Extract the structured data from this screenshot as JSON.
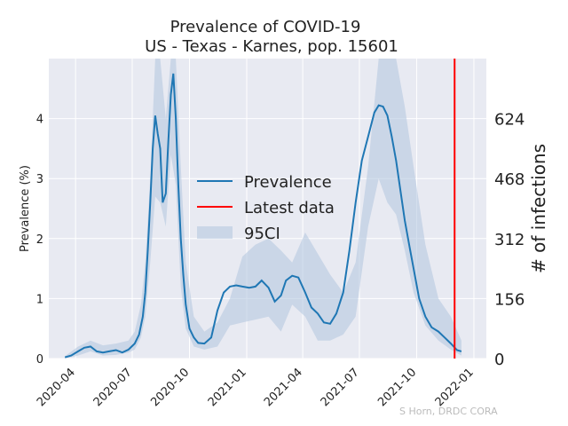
{
  "chart_data": {
    "type": "line",
    "title": "Prevalence of COVID-19",
    "subtitle": "US - Texas - Karnes, pop. 15601",
    "ylabel": "Prevalence (%)",
    "ylabel_right": "# of infections",
    "ylim": [
      0,
      5.0
    ],
    "yticks": [
      "0",
      "1",
      "2",
      "3",
      "4"
    ],
    "yticks_right": [
      "0",
      "156",
      "312",
      "468",
      "624"
    ],
    "xticks": [
      "2020-04",
      "2020-07",
      "2020-10",
      "2021-01",
      "2021-04",
      "2021-07",
      "2021-10",
      "2022-01"
    ],
    "grid": true,
    "legend_position": "center",
    "credit": "S Horn, DRDC CORA",
    "colors": {
      "line": "#1f77b4",
      "band": "#b0c4de",
      "latest": "#ff0000",
      "background": "#e8eaf2"
    },
    "series": [
      {
        "name": "Prevalence",
        "x": [
          "2020-03-15",
          "2020-03-25",
          "2020-04-05",
          "2020-04-15",
          "2020-04-25",
          "2020-05-05",
          "2020-05-15",
          "2020-05-25",
          "2020-06-05",
          "2020-06-15",
          "2020-06-25",
          "2020-07-05",
          "2020-07-12",
          "2020-07-18",
          "2020-07-22",
          "2020-07-26",
          "2020-07-30",
          "2020-08-03",
          "2020-08-07",
          "2020-08-11",
          "2020-08-15",
          "2020-08-19",
          "2020-08-24",
          "2020-08-28",
          "2020-09-01",
          "2020-09-05",
          "2020-09-09",
          "2020-09-13",
          "2020-09-17",
          "2020-09-21",
          "2020-09-25",
          "2020-10-01",
          "2020-10-08",
          "2020-10-15",
          "2020-10-25",
          "2020-11-05",
          "2020-11-15",
          "2020-11-25",
          "2020-12-05",
          "2020-12-15",
          "2020-12-25",
          "2021-01-05",
          "2021-01-15",
          "2021-01-25",
          "2021-02-05",
          "2021-02-15",
          "2021-02-25",
          "2021-03-05",
          "2021-03-15",
          "2021-03-25",
          "2021-04-05",
          "2021-04-15",
          "2021-04-25",
          "2021-05-05",
          "2021-05-15",
          "2021-05-25",
          "2021-06-05",
          "2021-06-15",
          "2021-06-25",
          "2021-07-05",
          "2021-07-15",
          "2021-07-25",
          "2021-08-01",
          "2021-08-08",
          "2021-08-15",
          "2021-08-22",
          "2021-08-29",
          "2021-09-05",
          "2021-09-12",
          "2021-09-19",
          "2021-09-26",
          "2021-10-05",
          "2021-10-15",
          "2021-10-25",
          "2021-11-05",
          "2021-11-15",
          "2021-11-25",
          "2021-12-05",
          "2021-12-12"
        ],
        "y": [
          0.02,
          0.05,
          0.12,
          0.18,
          0.2,
          0.12,
          0.1,
          0.12,
          0.14,
          0.1,
          0.15,
          0.25,
          0.4,
          0.7,
          1.1,
          1.8,
          2.6,
          3.5,
          4.05,
          3.75,
          3.5,
          2.6,
          2.75,
          3.6,
          4.4,
          4.75,
          4.0,
          2.9,
          2.0,
          1.4,
          0.9,
          0.5,
          0.35,
          0.26,
          0.25,
          0.35,
          0.8,
          1.1,
          1.2,
          1.22,
          1.2,
          1.18,
          1.2,
          1.3,
          1.18,
          0.95,
          1.05,
          1.3,
          1.38,
          1.35,
          1.1,
          0.85,
          0.75,
          0.6,
          0.58,
          0.75,
          1.1,
          1.8,
          2.6,
          3.3,
          3.7,
          4.1,
          4.22,
          4.2,
          4.05,
          3.7,
          3.3,
          2.8,
          2.3,
          1.9,
          1.5,
          1.0,
          0.7,
          0.52,
          0.45,
          0.35,
          0.25,
          0.14,
          0.12
        ]
      },
      {
        "name": "95CI",
        "x": [
          "2020-03-15",
          "2020-04-05",
          "2020-04-25",
          "2020-05-15",
          "2020-06-05",
          "2020-06-25",
          "2020-07-05",
          "2020-07-15",
          "2020-07-22",
          "2020-07-30",
          "2020-08-07",
          "2020-08-15",
          "2020-08-24",
          "2020-09-01",
          "2020-09-09",
          "2020-09-17",
          "2020-09-25",
          "2020-10-08",
          "2020-10-25",
          "2020-11-15",
          "2020-12-05",
          "2020-12-25",
          "2021-01-15",
          "2021-02-05",
          "2021-02-25",
          "2021-03-15",
          "2021-04-05",
          "2021-04-25",
          "2021-05-15",
          "2021-06-05",
          "2021-06-25",
          "2021-07-15",
          "2021-08-01",
          "2021-08-15",
          "2021-08-29",
          "2021-09-12",
          "2021-09-26",
          "2021-10-15",
          "2021-11-05",
          "2021-11-25",
          "2021-12-12"
        ],
        "upper": [
          0.04,
          0.2,
          0.3,
          0.22,
          0.25,
          0.3,
          0.45,
          0.9,
          1.6,
          3.0,
          5.0,
          5.0,
          4.0,
          5.0,
          5.0,
          3.2,
          1.6,
          0.7,
          0.45,
          0.6,
          1.0,
          1.7,
          1.9,
          2.0,
          1.8,
          1.6,
          2.1,
          1.75,
          1.4,
          1.1,
          1.6,
          3.2,
          5.0,
          5.0,
          5.0,
          4.2,
          3.2,
          1.9,
          1.0,
          0.7,
          0.3
        ],
        "lower": [
          0.0,
          0.05,
          0.12,
          0.05,
          0.06,
          0.1,
          0.15,
          0.35,
          0.7,
          1.6,
          2.7,
          2.6,
          2.2,
          3.4,
          2.9,
          1.2,
          0.5,
          0.2,
          0.15,
          0.2,
          0.55,
          0.6,
          0.65,
          0.7,
          0.45,
          0.9,
          0.7,
          0.3,
          0.3,
          0.4,
          0.7,
          2.2,
          3.0,
          2.6,
          2.4,
          1.8,
          1.1,
          0.55,
          0.3,
          0.15,
          0.05
        ]
      },
      {
        "name": "Latest data",
        "x": [
          "2021-12-01"
        ]
      }
    ]
  }
}
